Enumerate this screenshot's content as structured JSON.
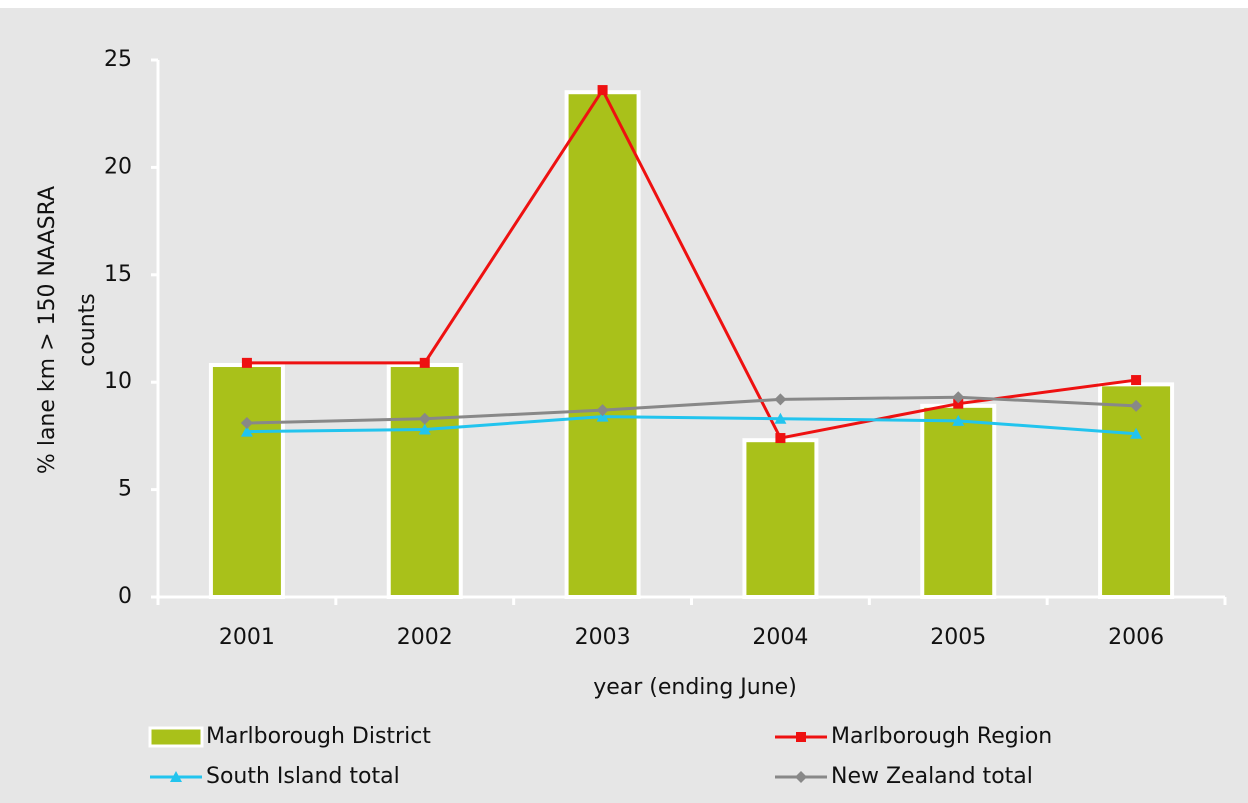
{
  "chart_data": {
    "type": "combo",
    "x_label": "year (ending June)",
    "y_label": [
      "% lane km > 150 NAASRA",
      "counts"
    ],
    "categories": [
      "2001",
      "2002",
      "2003",
      "2004",
      "2005",
      "2006"
    ],
    "series": [
      {
        "name": "Marlborough District",
        "type": "bar",
        "color": "#a9c11a",
        "values": [
          10.8,
          10.8,
          23.5,
          7.3,
          8.9,
          9.9
        ]
      },
      {
        "name": "Marlborough Region",
        "type": "line",
        "marker": "square",
        "color": "#ee1111",
        "values": [
          10.9,
          10.9,
          23.6,
          7.4,
          9.0,
          10.1
        ]
      },
      {
        "name": "South Island total",
        "type": "line",
        "marker": "triangle",
        "color": "#22c4ee",
        "values": [
          7.7,
          7.8,
          8.4,
          8.3,
          8.2,
          7.6
        ]
      },
      {
        "name": "New Zealand total",
        "type": "line",
        "marker": "diamond",
        "color": "#888888",
        "values": [
          8.1,
          8.3,
          8.7,
          9.2,
          9.3,
          8.9
        ]
      }
    ],
    "ylim": [
      0,
      25
    ],
    "yticks": [
      0,
      5,
      10,
      15,
      20,
      25
    ],
    "grid": false
  }
}
